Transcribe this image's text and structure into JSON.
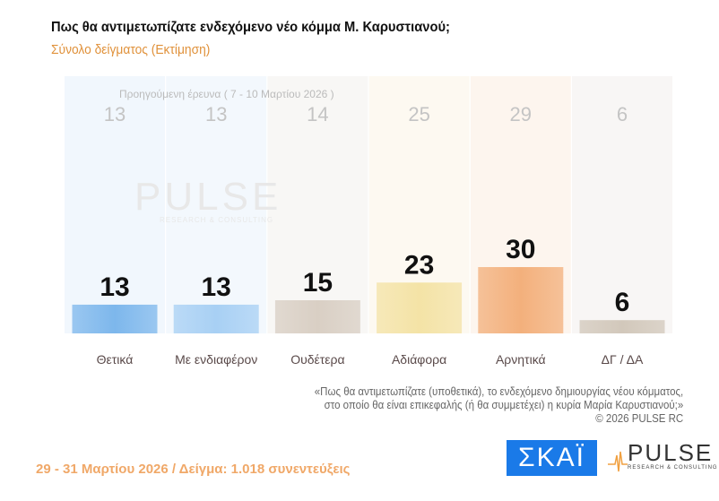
{
  "chart_data": {
    "type": "bar",
    "title": "Πως θα αντιμετωπίζατε ενδεχόμενο νέο κόμμα Μ. Καρυστιανού;",
    "subtitle": "Σύνολο δείγματος  (Εκτίμηση)",
    "categories": [
      "Θετικά",
      "Με ενδιαφέρον",
      "Ουδέτερα",
      "Αδιάφορα",
      "Αρνητικά",
      "ΔΓ / ΔΑ"
    ],
    "values": [
      13,
      13,
      15,
      23,
      30,
      6
    ],
    "previous_label": "Προηγούμενη έρευνα ( 7 - 10 Μαρτίου 2026 )",
    "previous_values": [
      13,
      13,
      14,
      25,
      29,
      6
    ],
    "colors": [
      "#7db7ec",
      "#a8d0f4",
      "#d9cfc4",
      "#f4e3a6",
      "#f3b07c",
      "#d2c8bb"
    ],
    "col_bg": [
      "#eef5fd",
      "#f0f6fd",
      "#f6f5f3",
      "#fdf8ee",
      "#fdf3ea",
      "#f6f4f2"
    ],
    "ylim": [
      0,
      35
    ]
  },
  "note": [
    "«Πως θα αντιμετωπίζατε (υποθετικά), το ενδεχόμενο δημιουργίας νέου κόμματος,",
    "στο οποίο θα είναι επικεφαλής (ή θα συμμετέχει) η κυρία Μαρία Καρυστιανού;»",
    "©  2026  PULSE RC"
  ],
  "footer": "29 - 31  Μαρτίου 2026  /  Δείγμα:  1.018 συνεντεύξεις",
  "logos": {
    "skai": "ΣΚΑΪ",
    "pulse": "PULSE",
    "pulse_sub": "RESEARCH & CONSULTING"
  }
}
